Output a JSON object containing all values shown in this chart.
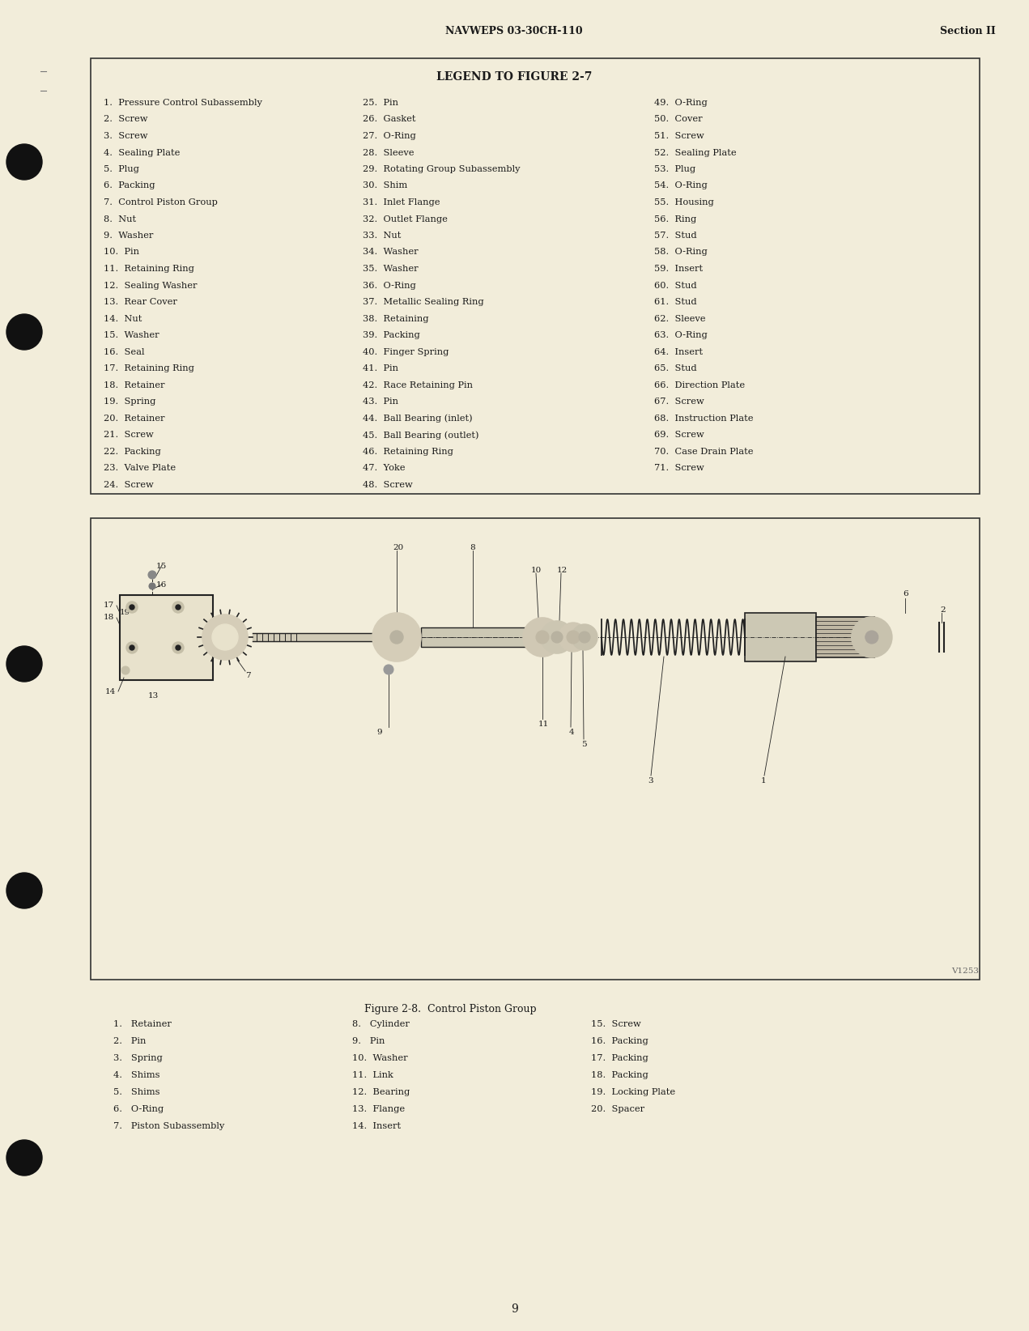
{
  "bg_color": "#f2edda",
  "text_color": "#1a1a1a",
  "header_text": "NAVWEPS 03-30CH-110",
  "header_right": "Section II",
  "page_number": "9",
  "legend_title": "LEGEND TO FIGURE 2-7",
  "legend_col1": [
    "1.  Pressure Control Subassembly",
    "2.  Screw",
    "3.  Screw",
    "4.  Sealing Plate",
    "5.  Plug",
    "6.  Packing",
    "7.  Control Piston Group",
    "8.  Nut",
    "9.  Washer",
    "10.  Pin",
    "11.  Retaining Ring",
    "12.  Sealing Washer",
    "13.  Rear Cover",
    "14.  Nut",
    "15.  Washer",
    "16.  Seal",
    "17.  Retaining Ring",
    "18.  Retainer",
    "19.  Spring",
    "20.  Retainer",
    "21.  Screw",
    "22.  Packing",
    "23.  Valve Plate",
    "24.  Screw"
  ],
  "legend_col2": [
    "25.  Pin",
    "26.  Gasket",
    "27.  O-Ring",
    "28.  Sleeve",
    "29.  Rotating Group Subassembly",
    "30.  Shim",
    "31.  Inlet Flange",
    "32.  Outlet Flange",
    "33.  Nut",
    "34.  Washer",
    "35.  Washer",
    "36.  O-Ring",
    "37.  Metallic Sealing Ring",
    "38.  Retaining",
    "39.  Packing",
    "40.  Finger Spring",
    "41.  Pin",
    "42.  Race Retaining Pin",
    "43.  Pin",
    "44.  Ball Bearing (inlet)",
    "45.  Ball Bearing (outlet)",
    "46.  Retaining Ring",
    "47.  Yoke",
    "48.  Screw"
  ],
  "legend_col3": [
    "49.  O-Ring",
    "50.  Cover",
    "51.  Screw",
    "52.  Sealing Plate",
    "53.  Plug",
    "54.  O-Ring",
    "55.  Housing",
    "56.  Ring",
    "57.  Stud",
    "58.  O-Ring",
    "59.  Insert",
    "60.  Stud",
    "61.  Stud",
    "62.  Sleeve",
    "63.  O-Ring",
    "64.  Insert",
    "65.  Stud",
    "66.  Direction Plate",
    "67.  Screw",
    "68.  Instruction Plate",
    "69.  Screw",
    "70.  Case Drain Plate",
    "71.  Screw"
  ],
  "fig_caption": "Figure 2-8.  Control Piston Group",
  "fig_legend_col1": [
    "1.   Retainer",
    "2.   Pin",
    "3.   Spring",
    "4.   Shims",
    "5.   Shims",
    "6.   O-Ring",
    "7.   Piston Subassembly"
  ],
  "fig_legend_col2": [
    "8.   Cylinder",
    "9.   Pin",
    "10.  Washer",
    "11.  Link",
    "12.  Bearing",
    "13.  Flange",
    "14.  Insert"
  ],
  "fig_legend_col3": [
    "15.  Screw",
    "16.  Packing",
    "17.  Packing",
    "18.  Packing",
    "19.  Locking Plate",
    "20.  Spacer"
  ],
  "watermark": "V1253"
}
